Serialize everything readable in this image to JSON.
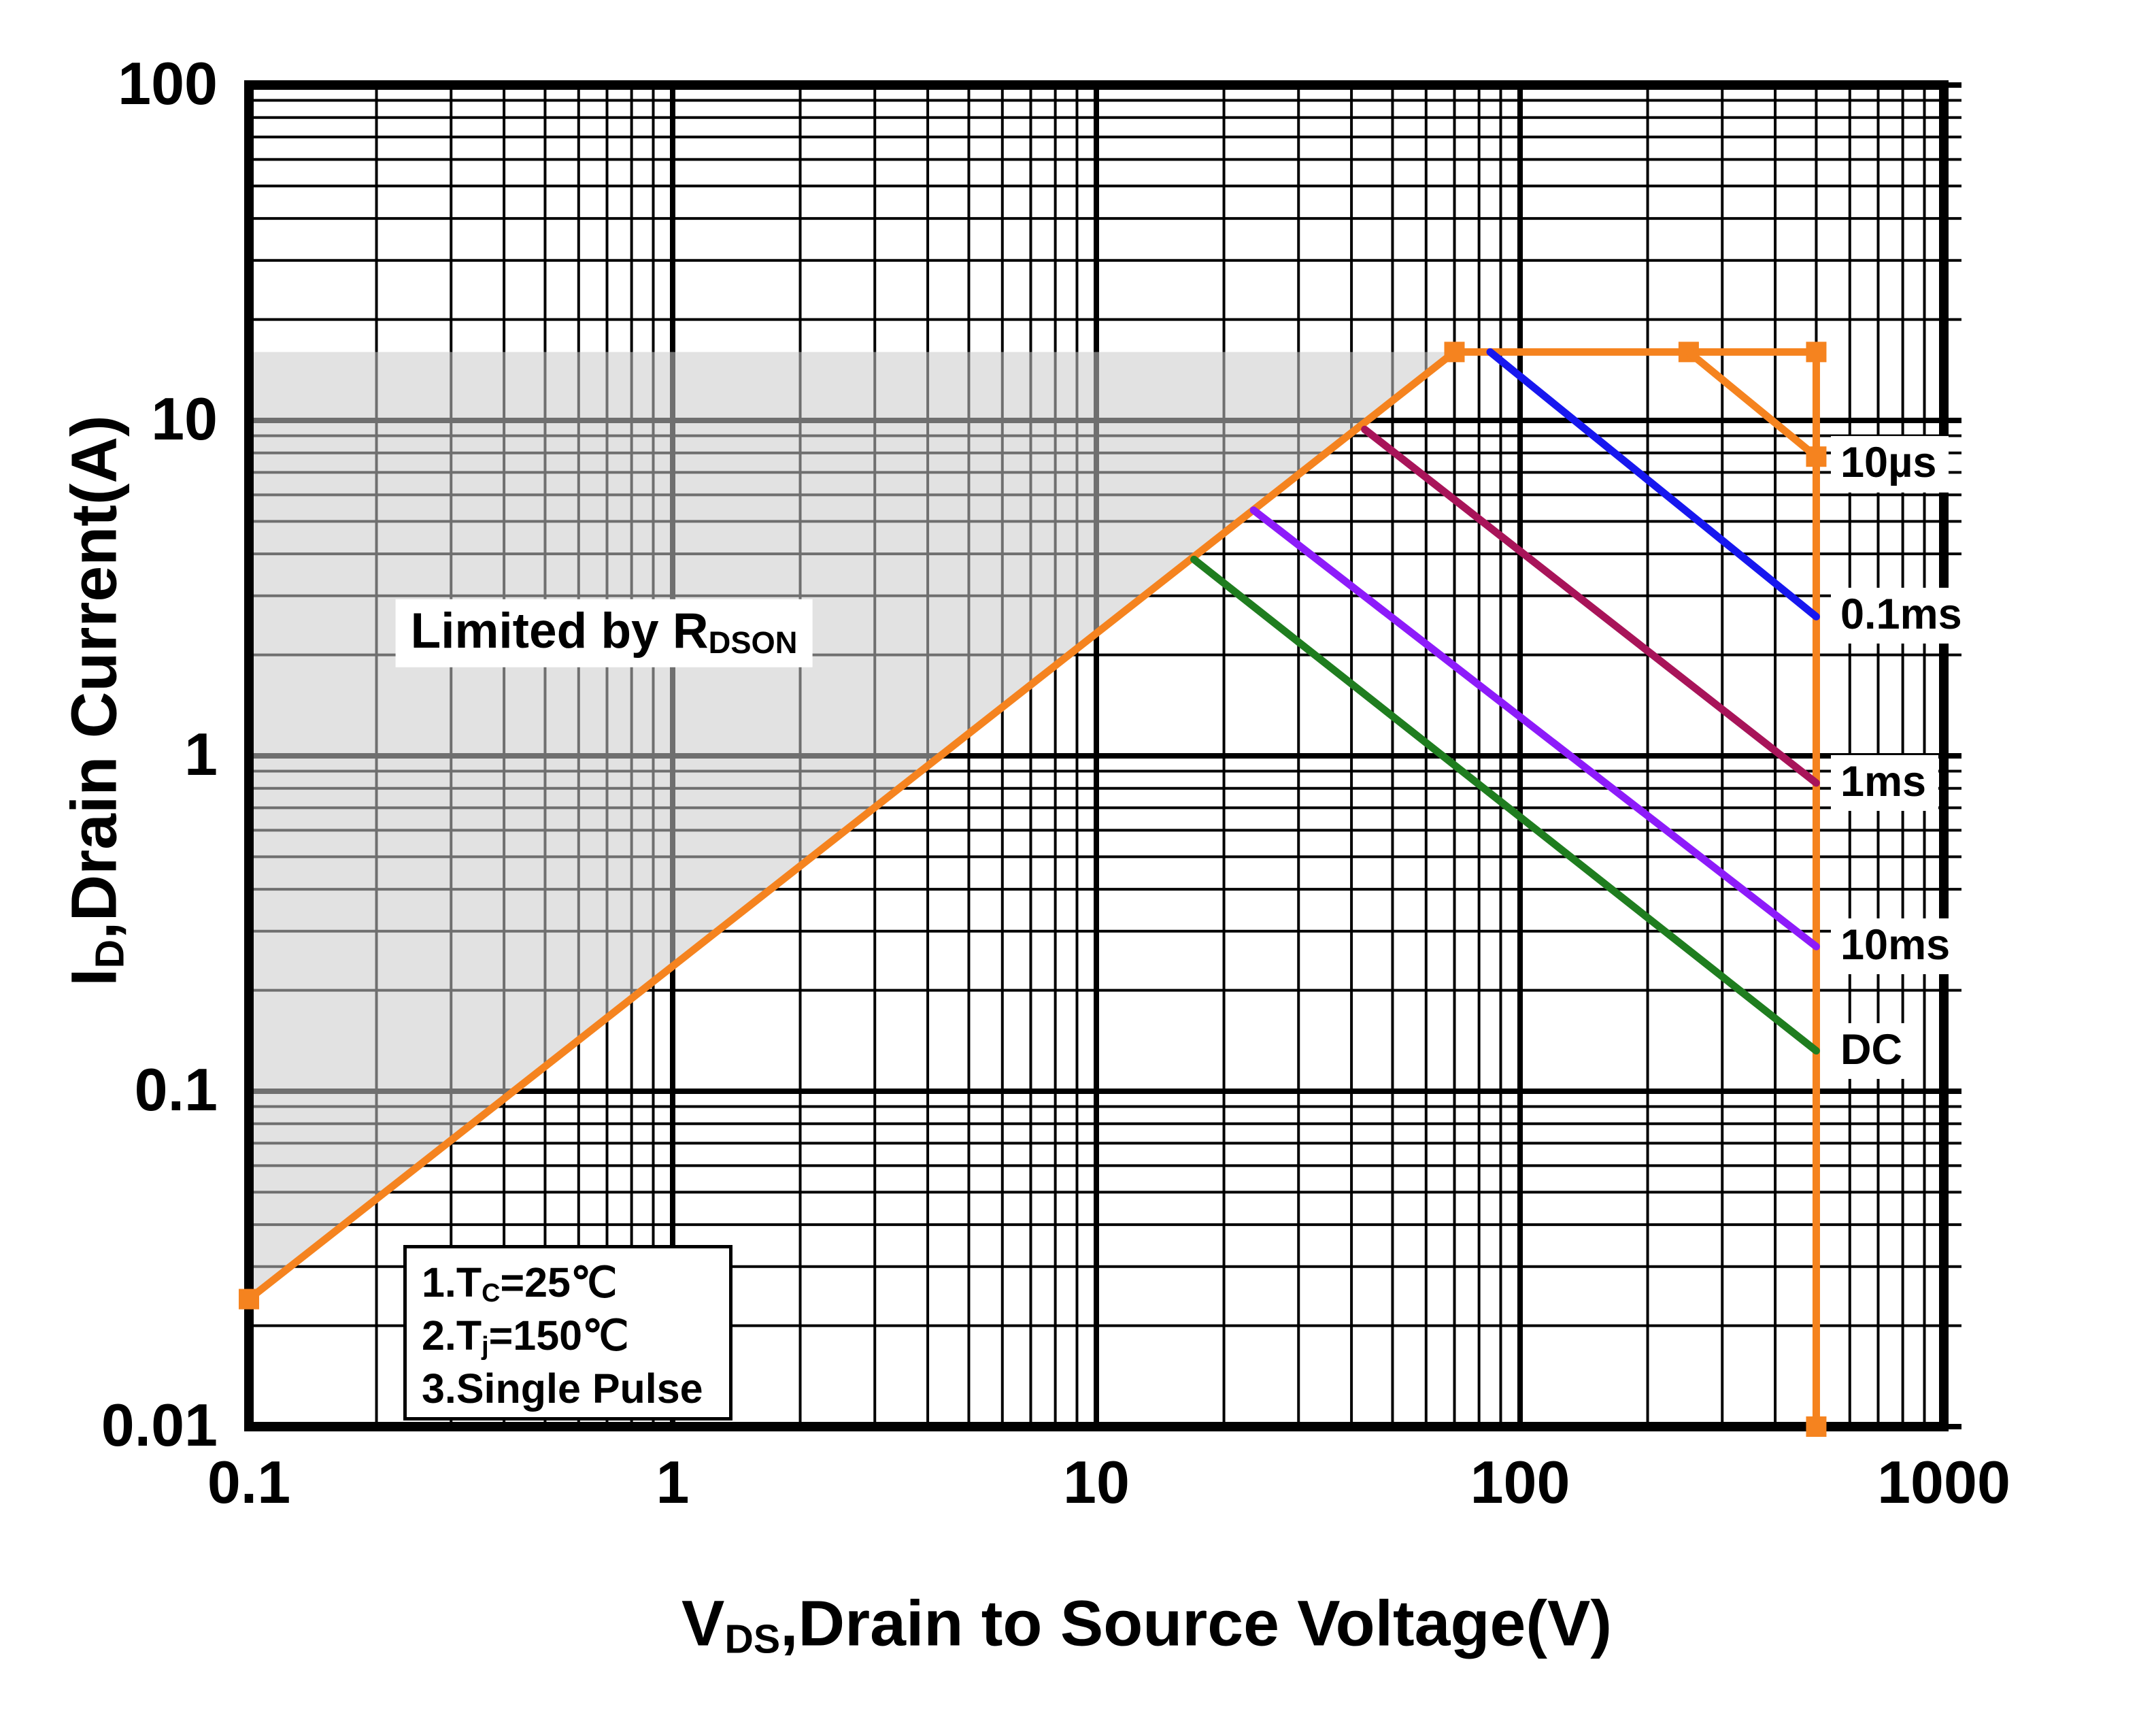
{
  "page": {
    "background": "#FFFFFF"
  },
  "chart_data": {
    "type": "line",
    "title": "",
    "log_x": true,
    "log_y": true,
    "x_axis": {
      "label_pre": "V",
      "label_sub": "DS",
      "label_post": ",Drain to Source Voltage(V)",
      "scale": "log",
      "min": 0.1,
      "max": 1000,
      "ticks": [
        {
          "v": 0.1,
          "label": "0.1"
        },
        {
          "v": 1,
          "label": "1"
        },
        {
          "v": 10,
          "label": "10"
        },
        {
          "v": 100,
          "label": "100"
        },
        {
          "v": 1000,
          "label": "1000"
        }
      ]
    },
    "y_axis": {
      "label_pre": "I",
      "label_sub": "D",
      "label_post": ",Drain Current(A)",
      "scale": "log",
      "min": 0.01,
      "max": 100,
      "ticks": [
        {
          "v": 100,
          "label": "100"
        },
        {
          "v": 10,
          "label": "10"
        },
        {
          "v": 1,
          "label": "1"
        },
        {
          "v": 0.1,
          "label": "0.1"
        },
        {
          "v": 0.01,
          "label": "0.01"
        }
      ]
    },
    "grid": {
      "color": "#000000",
      "major_width": 8,
      "minor_width": 4,
      "frame_width": 14,
      "right_overhang": 26
    },
    "region": {
      "id": "limited-by-rdson",
      "label_pre": "Limited by R",
      "label_sub": "DSON",
      "points": [
        [
          0.1,
          0.024
        ],
        [
          70,
          16
        ],
        [
          0.1,
          16
        ]
      ],
      "fill": "#CACACA",
      "fill_opacity": 0.55
    },
    "series": [
      {
        "id": "soa-limit-boundary",
        "label": "",
        "color": "#F5831F",
        "width": 11,
        "points": [
          [
            0.1,
            0.024
          ],
          [
            70,
            16
          ],
          [
            500,
            16
          ],
          [
            500,
            0.01
          ]
        ],
        "markers": [
          [
            0.1,
            0.024
          ],
          [
            70,
            16
          ],
          [
            250,
            16
          ],
          [
            500,
            16
          ],
          [
            500,
            0.01
          ]
        ]
      },
      {
        "id": "pulse-10us",
        "label": "10µs",
        "label_at": 7.4,
        "color": "#F5831F",
        "width": 11,
        "points": [
          [
            250,
            16
          ],
          [
            500,
            7.8
          ]
        ],
        "markers": [
          [
            500,
            7.8
          ]
        ]
      },
      {
        "id": "pulse-0p1ms",
        "label": "0.1ms",
        "label_at": 2.62,
        "color": "#1717EF",
        "width": 11,
        "points": [
          [
            85,
            16
          ],
          [
            500,
            2.6
          ]
        ],
        "markers": []
      },
      {
        "id": "pulse-1ms",
        "label": "1ms",
        "label_at": 0.83,
        "color": "#A81459",
        "width": 11,
        "points": [
          [
            43,
            9.4
          ],
          [
            500,
            0.83
          ]
        ],
        "markers": []
      },
      {
        "id": "pulse-10ms",
        "label": "10ms",
        "label_at": 0.27,
        "color": "#8D1BFA",
        "width": 11,
        "points": [
          [
            23.5,
            5.4
          ],
          [
            500,
            0.27
          ]
        ],
        "markers": []
      },
      {
        "id": "dc",
        "label": "DC",
        "label_at": 0.132,
        "color": "#1F7D1F",
        "width": 11,
        "points": [
          [
            17,
            3.85
          ],
          [
            500,
            0.132
          ]
        ],
        "markers": []
      }
    ],
    "notes": [
      {
        "pre": "1.T",
        "sub": "C",
        "post": "=25℃"
      },
      {
        "pre": "2.T",
        "sub": "j",
        "post": "=150℃"
      },
      {
        "pre": "3.Single Pulse",
        "sub": "",
        "post": ""
      }
    ]
  }
}
